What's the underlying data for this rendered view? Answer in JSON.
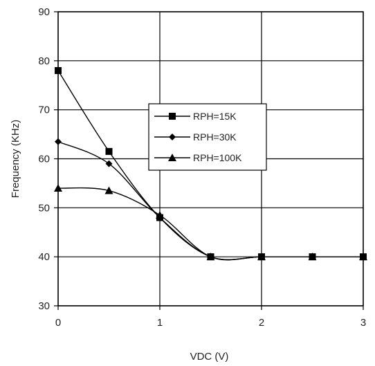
{
  "chart_data": {
    "type": "line",
    "title": "",
    "xlabel": "VDC (V)",
    "ylabel": "Frequency (KHz)",
    "xlim": [
      0,
      3
    ],
    "ylim": [
      30,
      90
    ],
    "xticks": [
      0,
      1,
      2,
      3
    ],
    "yticks": [
      30,
      40,
      50,
      60,
      70,
      80,
      90
    ],
    "x_tick_labels": [
      "0",
      "1",
      "2",
      "3"
    ],
    "y_tick_labels": [
      "30",
      "40",
      "50",
      "60",
      "70",
      "80",
      "90"
    ],
    "grid": true,
    "legend_position": "center",
    "series": [
      {
        "name": "RPH=15K",
        "marker": "square",
        "x": [
          0,
          0.5,
          1,
          1.5,
          2,
          2.5,
          3
        ],
        "y": [
          78,
          61.5,
          48,
          40,
          40,
          40,
          40
        ]
      },
      {
        "name": "RPH=30K",
        "marker": "diamond",
        "x": [
          0,
          0.5,
          1,
          1.5,
          2,
          2.5,
          3
        ],
        "y": [
          63.5,
          59,
          48,
          40,
          40,
          40,
          40
        ]
      },
      {
        "name": "RPH=100K",
        "marker": "triangle",
        "x": [
          0,
          0.5,
          1,
          1.5,
          2,
          2.5,
          3
        ],
        "y": [
          54,
          53.5,
          48.5,
          40,
          40,
          40,
          40
        ]
      }
    ]
  }
}
